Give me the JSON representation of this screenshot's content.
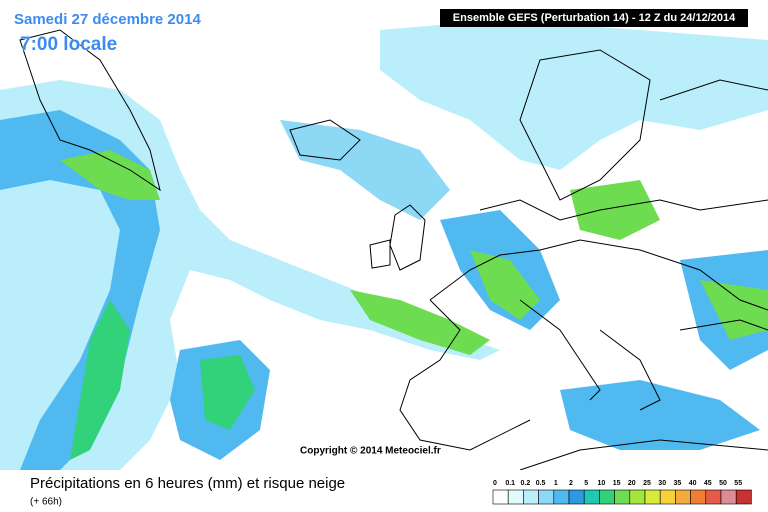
{
  "header": {
    "date": "Samedi 27 décembre 2014",
    "time": "7:00 locale",
    "model": "Ensemble GEFS  (Perturbation 14)  -  12 Z du 24/12/2014"
  },
  "copyright": "Copyright © 2014 Meteociel.fr",
  "footer": {
    "title": "Précipitations en 6 heures (mm) et risque neige",
    "lead": "(+ 66h)"
  },
  "legend": [
    {
      "label": "0",
      "color": "#ffffff"
    },
    {
      "label": "0.1",
      "color": "#e1fafd"
    },
    {
      "label": "0.2",
      "color": "#b9eefa"
    },
    {
      "label": "0.5",
      "color": "#8cd8f5"
    },
    {
      "label": "1",
      "color": "#50b9f0"
    },
    {
      "label": "2",
      "color": "#2c9ae0"
    },
    {
      "label": "5",
      "color": "#1ec8b4"
    },
    {
      "label": "10",
      "color": "#32d27a"
    },
    {
      "label": "15",
      "color": "#6edc50"
    },
    {
      "label": "20",
      "color": "#a5e63c"
    },
    {
      "label": "25",
      "color": "#d7eb3c"
    },
    {
      "label": "30",
      "color": "#f5d23c"
    },
    {
      "label": "35",
      "color": "#f5aa3c"
    },
    {
      "label": "40",
      "color": "#f07d32"
    },
    {
      "label": "45",
      "color": "#e65a46"
    },
    {
      "label": "50",
      "color": "#dc8c96"
    },
    {
      "label": "55",
      "color": "#c83232"
    }
  ]
}
